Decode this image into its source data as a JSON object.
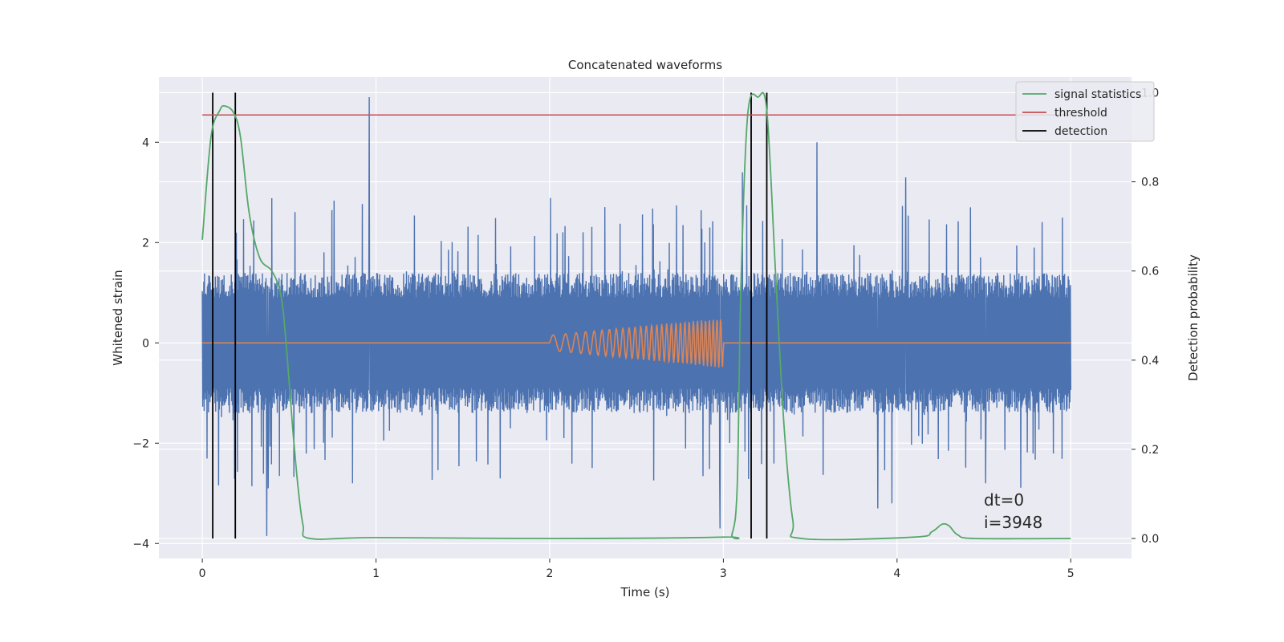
{
  "chart_data": {
    "type": "line",
    "title": "Concatenated waveforms",
    "xlabel": "Time (s)",
    "ylabel": "Whitened strain",
    "y2label": "Detection probability",
    "xlim": [
      -0.25,
      5.35
    ],
    "ylim": [
      -4.3,
      5.3
    ],
    "y2lim": [
      -0.045,
      1.035
    ],
    "x_ticks": [
      0,
      1,
      2,
      3,
      4,
      5
    ],
    "y_ticks": [
      -4,
      -2,
      0,
      2,
      4
    ],
    "y2_ticks": [
      0.0,
      0.2,
      0.4,
      0.6,
      0.8,
      1.0
    ],
    "y2_tick_labels": [
      "0.0",
      "0.2",
      "0.4",
      "0.6",
      "0.8",
      "1.0"
    ],
    "grid": true,
    "legend_position": "top-right",
    "annotations": [
      "dt=0",
      "i=3948"
    ],
    "colors": {
      "strain": "#4c72b0",
      "injection": "#dd8452",
      "signal_statistics": "#55a868",
      "threshold": "#c44e52",
      "detection": "#000000",
      "plot_bg": "#eaeaf2",
      "grid": "#ffffff"
    },
    "series": [
      {
        "name": "",
        "axis": "left",
        "kind": "noise",
        "x_range": [
          0,
          5
        ],
        "typical_range": [
          -1.4,
          1.4
        ],
        "extremes": [
          {
            "x": 0.96,
            "y": 4.9
          },
          {
            "x": 0.37,
            "y": -3.85
          },
          {
            "x": 0.38,
            "y": -2.9
          },
          {
            "x": 3.54,
            "y": 4.0
          },
          {
            "x": 3.11,
            "y": 3.4
          },
          {
            "x": 4.05,
            "y": 3.3
          },
          {
            "x": 2.98,
            "y": -3.7
          },
          {
            "x": 3.89,
            "y": -3.3
          },
          {
            "x": 3.97,
            "y": -3.2
          },
          {
            "x": 4.51,
            "y": -2.8
          }
        ]
      },
      {
        "name": "",
        "axis": "left",
        "kind": "chirp",
        "x_range": [
          0,
          5
        ],
        "chirp_interval": [
          2.0,
          3.0
        ],
        "amplitude_start": 0.15,
        "amplitude_end": 0.5,
        "frequency_start": 12,
        "frequency_end": 48
      },
      {
        "name": "signal statistics",
        "axis": "right",
        "x": [
          0.0,
          0.05,
          0.1,
          0.13,
          0.18,
          0.22,
          0.27,
          0.33,
          0.4,
          0.45,
          0.48,
          0.52,
          0.55,
          0.58,
          0.62,
          1.0,
          2.0,
          3.0,
          3.05,
          3.08,
          3.1,
          3.14,
          3.2,
          3.25,
          3.3,
          3.35,
          3.4,
          3.45,
          4.1,
          4.2,
          4.26,
          4.3,
          4.35,
          4.45,
          5.0
        ],
        "values": [
          0.67,
          0.9,
          0.96,
          0.97,
          0.955,
          0.9,
          0.73,
          0.63,
          0.6,
          0.55,
          0.45,
          0.25,
          0.12,
          0.03,
          0.0,
          0.002,
          0.0,
          0.003,
          0.01,
          0.12,
          0.55,
          0.95,
          0.99,
          0.96,
          0.6,
          0.25,
          0.04,
          0.0,
          0.003,
          0.015,
          0.032,
          0.028,
          0.008,
          0.0,
          0.0
        ]
      },
      {
        "name": "threshold",
        "axis": "right",
        "x": [
          0,
          5
        ],
        "values": [
          0.95,
          0.95
        ]
      },
      {
        "name": "detection",
        "axis": "right",
        "kind": "vlines",
        "x": [
          0.06,
          0.19,
          3.16,
          3.25
        ],
        "ymin": 0.0,
        "ymax": 1.0
      }
    ]
  }
}
